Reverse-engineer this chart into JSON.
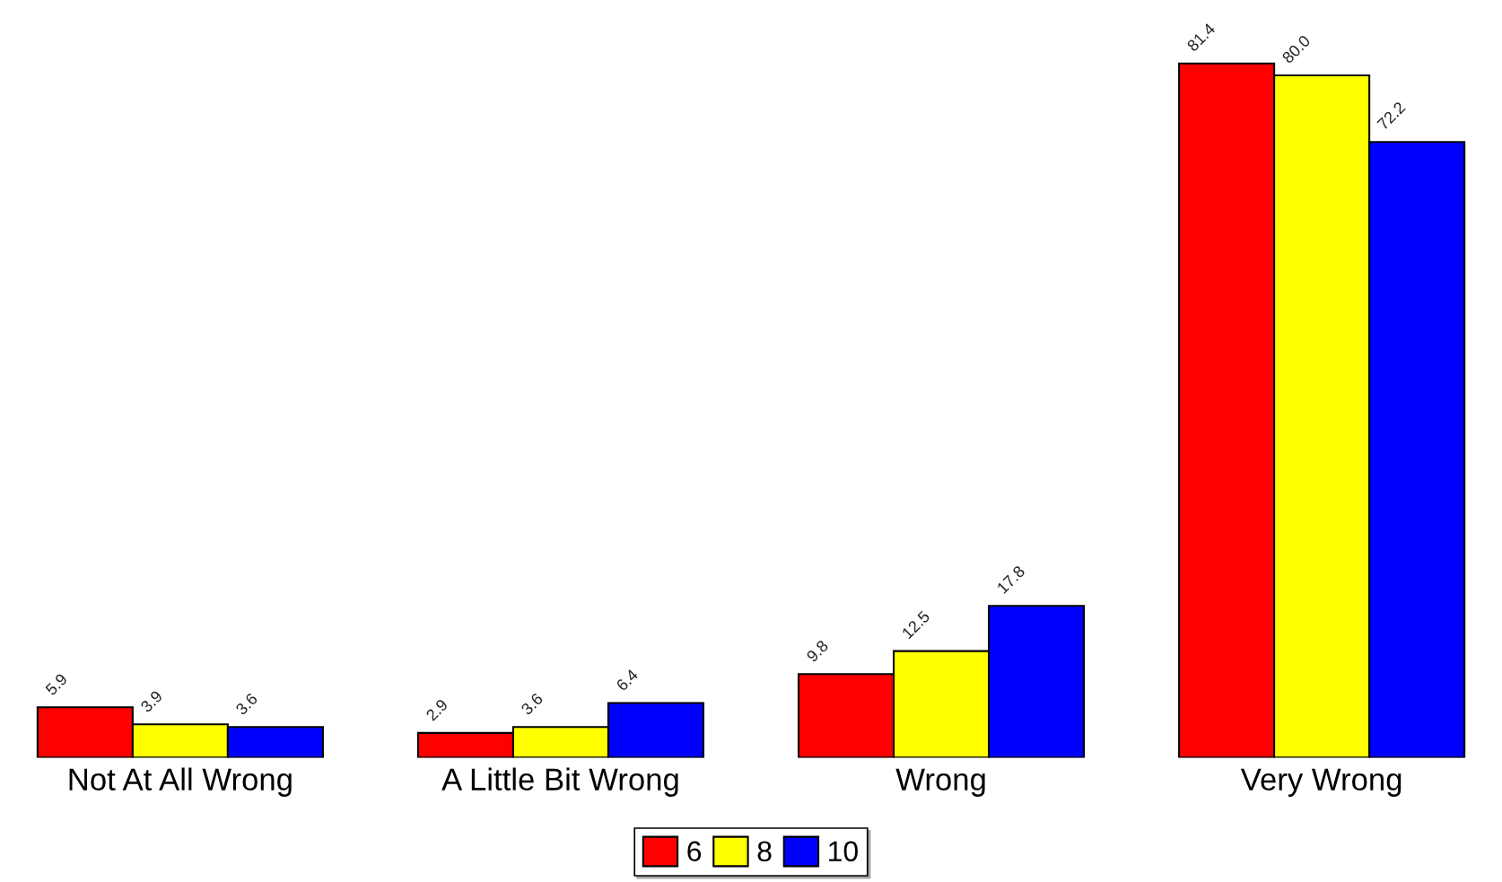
{
  "chart_data": {
    "type": "bar",
    "categories": [
      "Not At All Wrong",
      "A Little Bit Wrong",
      "Wrong",
      "Very Wrong"
    ],
    "series": [
      {
        "name": "6",
        "color": "#ff0000",
        "values": [
          5.9,
          2.9,
          9.8,
          81.4
        ],
        "value_labels": [
          "5.9",
          "2.9",
          "9.8",
          "81.4"
        ]
      },
      {
        "name": "8",
        "color": "#ffff00",
        "values": [
          3.9,
          3.6,
          12.5,
          80.0
        ],
        "value_labels": [
          "3.9",
          "3.6",
          "12.5",
          "80.0"
        ]
      },
      {
        "name": "10",
        "color": "#0000ff",
        "values": [
          3.6,
          6.4,
          17.8,
          72.2
        ],
        "value_labels": [
          "3.6",
          "6.4",
          "17.8",
          "72.2"
        ]
      }
    ],
    "legend": "bottom",
    "tick_labels": "x"
  }
}
